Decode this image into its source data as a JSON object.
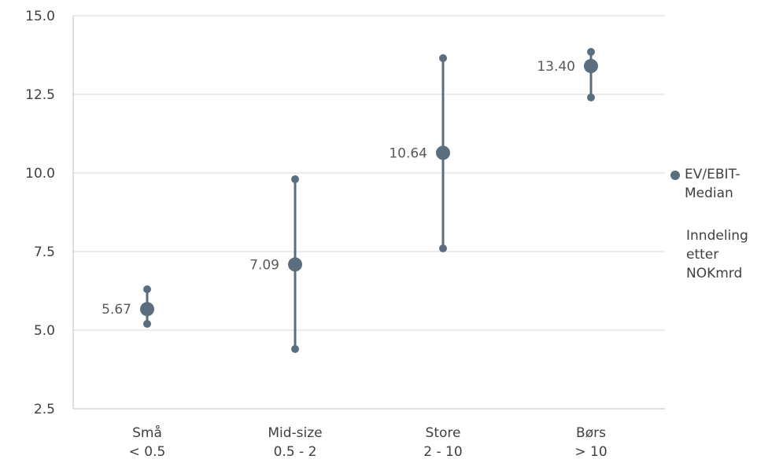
{
  "chart_data": {
    "type": "scatter",
    "categories": [
      [
        "Små",
        "< 0.5"
      ],
      [
        "Mid-size",
        "0.5 - 2"
      ],
      [
        "Store",
        "2 - 10"
      ],
      [
        "Børs",
        "> 10"
      ]
    ],
    "series": [
      {
        "name": "EV/EBIT-Median",
        "values": [
          5.67,
          7.09,
          10.64,
          13.4
        ],
        "labels": [
          "5.67",
          "7.09",
          "10.64",
          "13.40"
        ],
        "low": [
          5.2,
          4.4,
          7.6,
          12.4
        ],
        "high": [
          6.3,
          9.8,
          13.65,
          13.85
        ]
      }
    ],
    "ylim": [
      2.5,
      15.0
    ],
    "yticks": [
      "2.5",
      "5.0",
      "7.5",
      "10.0",
      "12.5",
      "15.0"
    ],
    "grid": true,
    "legend_position": "right",
    "color": "#5b6e80"
  },
  "legend": {
    "series_label": "EV/EBIT-Median",
    "note": "Inndeling etter NOKmrd"
  }
}
